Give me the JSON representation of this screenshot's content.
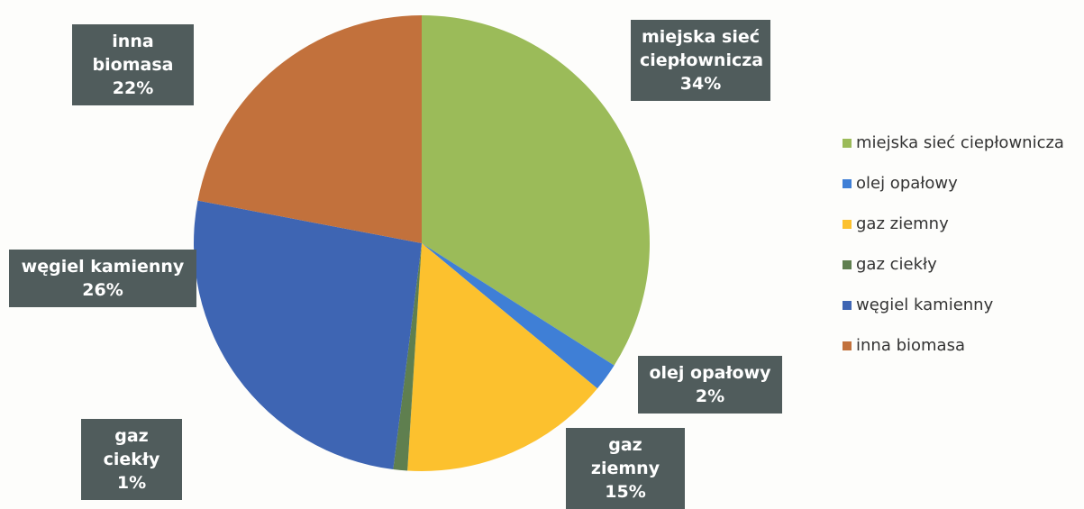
{
  "chart_data": {
    "type": "pie",
    "categories": [
      "miejska sieć ciepłownicza",
      "olej opałowy",
      "gaz ziemny",
      "gaz ciekły",
      "węgiel kamienny",
      "inna biomasa"
    ],
    "values": [
      34,
      2,
      15,
      1,
      26,
      22
    ],
    "value_labels": [
      "34%",
      "2%",
      "15%",
      "1%",
      "26%",
      "22%"
    ],
    "colors": [
      "#9bbb59",
      "#3f7fd6",
      "#fcc12e",
      "#5f7f4f",
      "#3e65b3",
      "#c2713c"
    ],
    "legend": "right"
  }
}
